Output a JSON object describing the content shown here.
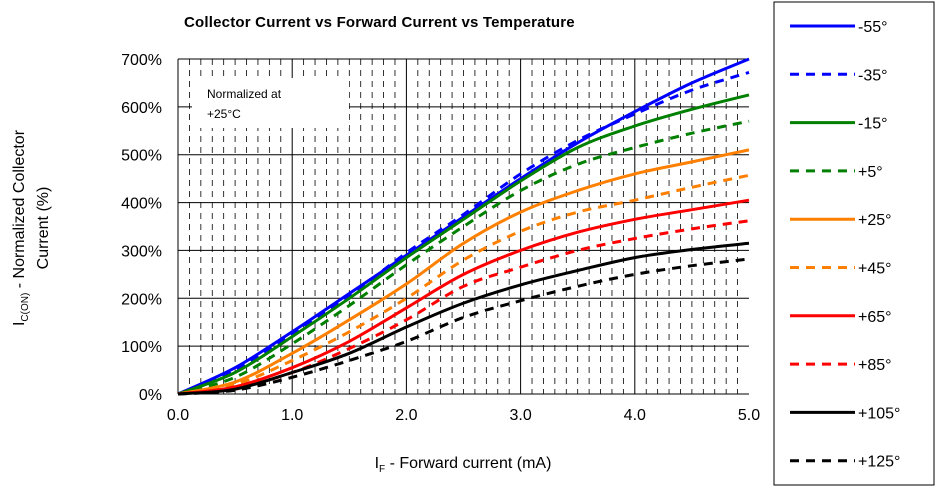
{
  "chart_data": {
    "type": "line",
    "title": "Collector Current vs Forward Current vs Temperature",
    "xlabel": {
      "main": "I",
      "sub": "F",
      "rest": " - Forward current (mA)"
    },
    "ylabel": {
      "line1_main": "I",
      "line1_sub": "C(ON)",
      "line1_rest": " - Normalized Collector",
      "line2": "Current (%)"
    },
    "xlim": [
      0,
      5
    ],
    "ylim": [
      0,
      700
    ],
    "x_ticks": [
      "0.0",
      "1.0",
      "2.0",
      "3.0",
      "4.0",
      "5.0"
    ],
    "y_ticks": [
      "0%",
      "100%",
      "200%",
      "300%",
      "400%",
      "500%",
      "600%",
      "700%"
    ],
    "annotation": [
      "Normalized at",
      "+25°C"
    ],
    "legend_position": "right",
    "series": [
      {
        "name": "-55°",
        "color": "#0000ff",
        "dash": "solid",
        "points": [
          [
            0,
            0
          ],
          [
            0.5,
            55
          ],
          [
            1,
            130
          ],
          [
            1.5,
            210
          ],
          [
            2,
            290
          ],
          [
            2.5,
            370
          ],
          [
            3,
            450
          ],
          [
            3.5,
            525
          ],
          [
            4,
            590
          ],
          [
            4.5,
            650
          ],
          [
            5,
            700
          ]
        ]
      },
      {
        "name": "-35°",
        "color": "#0000ff",
        "dash": "dashed",
        "points": [
          [
            0,
            0
          ],
          [
            0.5,
            50
          ],
          [
            1,
            125
          ],
          [
            1.5,
            205
          ],
          [
            2,
            295
          ],
          [
            2.5,
            375
          ],
          [
            3,
            460
          ],
          [
            3.5,
            530
          ],
          [
            4,
            585
          ],
          [
            4.5,
            635
          ],
          [
            5,
            672
          ]
        ]
      },
      {
        "name": "-15°",
        "color": "#008000",
        "dash": "solid",
        "points": [
          [
            0,
            0
          ],
          [
            0.5,
            45
          ],
          [
            1,
            120
          ],
          [
            1.5,
            200
          ],
          [
            2,
            285
          ],
          [
            2.5,
            365
          ],
          [
            3,
            445
          ],
          [
            3.5,
            515
          ],
          [
            4,
            560
          ],
          [
            4.5,
            595
          ],
          [
            5,
            625
          ]
        ]
      },
      {
        "name": "+5°",
        "color": "#008000",
        "dash": "dashed",
        "points": [
          [
            0,
            0
          ],
          [
            0.5,
            35
          ],
          [
            1,
            105
          ],
          [
            1.5,
            185
          ],
          [
            2,
            270
          ],
          [
            2.5,
            350
          ],
          [
            3,
            425
          ],
          [
            3.5,
            480
          ],
          [
            4,
            515
          ],
          [
            4.5,
            545
          ],
          [
            5,
            570
          ]
        ]
      },
      {
        "name": "+25°",
        "color": "#ff8000",
        "dash": "solid",
        "points": [
          [
            0,
            0
          ],
          [
            0.5,
            25
          ],
          [
            1,
            85
          ],
          [
            1.5,
            155
          ],
          [
            2,
            230
          ],
          [
            2.5,
            315
          ],
          [
            3,
            380
          ],
          [
            3.5,
            425
          ],
          [
            4,
            460
          ],
          [
            4.5,
            485
          ],
          [
            5,
            510
          ]
        ]
      },
      {
        "name": "+45°",
        "color": "#ff8000",
        "dash": "dashed",
        "points": [
          [
            0,
            0
          ],
          [
            0.5,
            20
          ],
          [
            1,
            70
          ],
          [
            1.5,
            130
          ],
          [
            2,
            200
          ],
          [
            2.5,
            280
          ],
          [
            3,
            340
          ],
          [
            3.5,
            380
          ],
          [
            4,
            405
          ],
          [
            4.5,
            432
          ],
          [
            5,
            457
          ]
        ]
      },
      {
        "name": "+65°",
        "color": "#ff0000",
        "dash": "solid",
        "points": [
          [
            0,
            0
          ],
          [
            0.5,
            15
          ],
          [
            1,
            55
          ],
          [
            1.5,
            110
          ],
          [
            2,
            180
          ],
          [
            2.5,
            250
          ],
          [
            3,
            300
          ],
          [
            3.5,
            338
          ],
          [
            4,
            365
          ],
          [
            4.5,
            385
          ],
          [
            5,
            405
          ]
        ]
      },
      {
        "name": "+85°",
        "color": "#ff0000",
        "dash": "dashed",
        "points": [
          [
            0,
            0
          ],
          [
            0.5,
            12
          ],
          [
            1,
            45
          ],
          [
            1.5,
            95
          ],
          [
            2,
            155
          ],
          [
            2.5,
            225
          ],
          [
            3,
            265
          ],
          [
            3.5,
            300
          ],
          [
            4,
            325
          ],
          [
            4.5,
            345
          ],
          [
            5,
            362
          ]
        ]
      },
      {
        "name": "+105°",
        "color": "#000000",
        "dash": "solid",
        "points": [
          [
            0,
            0
          ],
          [
            0.5,
            10
          ],
          [
            1,
            45
          ],
          [
            1.5,
            85
          ],
          [
            2,
            140
          ],
          [
            2.5,
            190
          ],
          [
            3,
            228
          ],
          [
            3.5,
            258
          ],
          [
            4,
            285
          ],
          [
            4.5,
            302
          ],
          [
            5,
            315
          ]
        ]
      },
      {
        "name": "+125°",
        "color": "#000000",
        "dash": "dashed",
        "points": [
          [
            0,
            0
          ],
          [
            0.5,
            8
          ],
          [
            1,
            35
          ],
          [
            1.5,
            70
          ],
          [
            2,
            110
          ],
          [
            2.5,
            160
          ],
          [
            3,
            195
          ],
          [
            3.5,
            225
          ],
          [
            4,
            250
          ],
          [
            4.5,
            268
          ],
          [
            5,
            282
          ]
        ]
      }
    ]
  }
}
